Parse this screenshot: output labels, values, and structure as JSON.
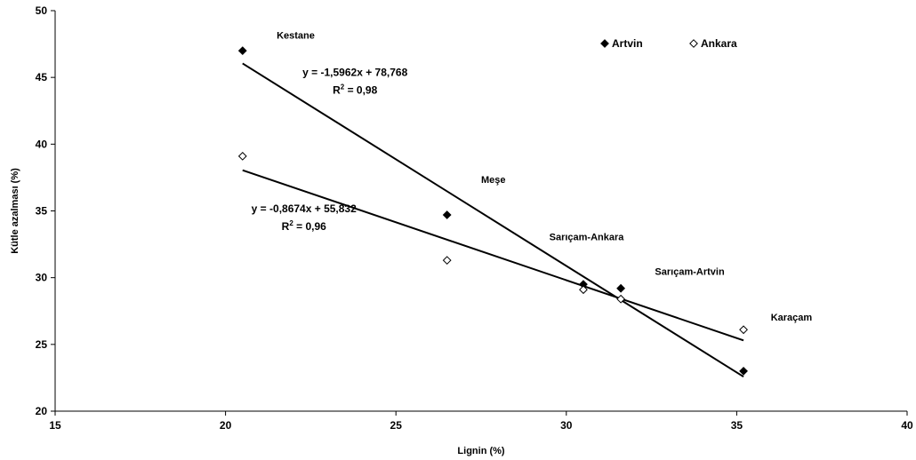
{
  "chart_data": {
    "type": "scatter",
    "xlabel": "Lignin (%)",
    "ylabel": "Kütle azalması (%)",
    "xlim": [
      15,
      40
    ],
    "ylim": [
      20,
      50
    ],
    "x_ticks": [
      15,
      20,
      25,
      30,
      35,
      40
    ],
    "y_ticks": [
      20,
      25,
      30,
      35,
      40,
      45,
      50
    ],
    "grid": false,
    "legend_position": "top-right",
    "series": [
      {
        "name": "Artvin",
        "marker": "filled-diamond",
        "color": "#000000",
        "points": [
          {
            "x": 20.5,
            "y": 47.0
          },
          {
            "x": 26.5,
            "y": 34.7
          },
          {
            "x": 30.5,
            "y": 29.5
          },
          {
            "x": 31.6,
            "y": 29.2
          },
          {
            "x": 35.2,
            "y": 23.0
          }
        ],
        "trendline": {
          "slope": -1.5962,
          "intercept": 78.768,
          "x_range": [
            20.5,
            35.2
          ]
        }
      },
      {
        "name": "Ankara",
        "marker": "open-diamond",
        "color": "#000000",
        "points": [
          {
            "x": 20.5,
            "y": 39.1
          },
          {
            "x": 26.5,
            "y": 31.3
          },
          {
            "x": 30.5,
            "y": 29.1
          },
          {
            "x": 31.6,
            "y": 28.4
          },
          {
            "x": 35.2,
            "y": 26.1
          }
        ],
        "trendline": {
          "slope": -0.8674,
          "intercept": 55.832,
          "x_range": [
            20.5,
            35.2
          ]
        }
      }
    ],
    "point_labels": [
      {
        "text": "Kestane",
        "x": 21.5,
        "y": 47.9
      },
      {
        "text": "Meşe",
        "x": 27.5,
        "y": 37.1
      },
      {
        "text": "Sarıçam-Ankara",
        "x": 29.5,
        "y": 32.8
      },
      {
        "text": "Sarıçam-Artvin",
        "x": 32.6,
        "y": 30.2
      },
      {
        "text": "Karaçam",
        "x": 36.0,
        "y": 26.8
      }
    ],
    "equations": [
      {
        "line1": "y = -1,5962x + 78,768",
        "r2_prefix": "R",
        "r2_sup": "2",
        "r2_value": " = 0,98",
        "x": 23.8,
        "y": 45.1
      },
      {
        "line1": "y = -0,8674x + 55,832",
        "r2_prefix": "R",
        "r2_sup": "2",
        "r2_value": " = 0,96",
        "x": 22.3,
        "y": 34.9
      }
    ]
  }
}
